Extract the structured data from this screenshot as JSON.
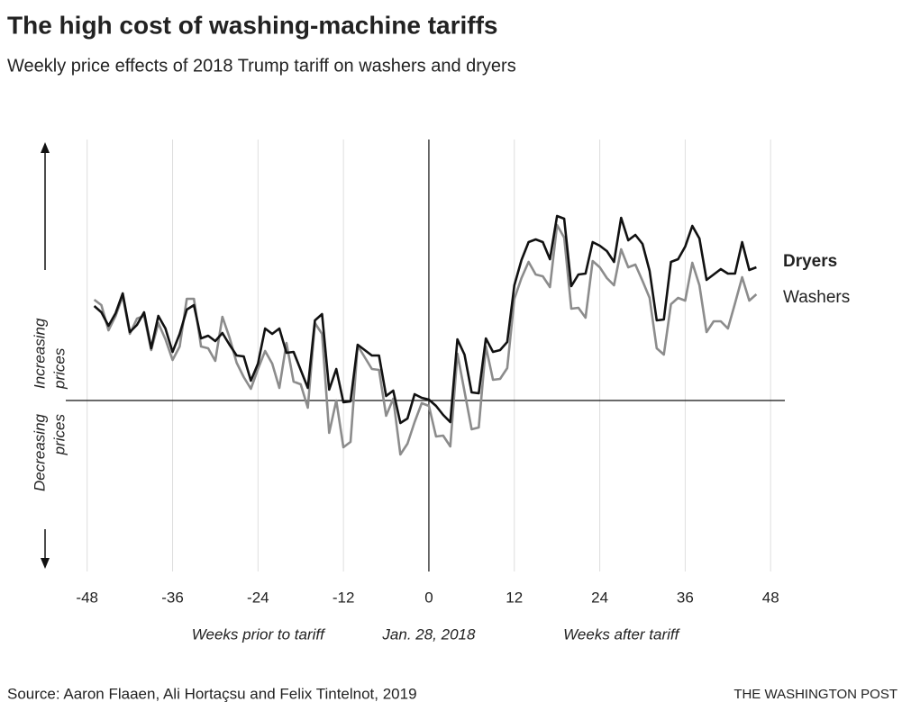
{
  "chart_data": {
    "type": "line",
    "title": "The high cost of washing-machine tariffs",
    "subtitle": "Weekly price effects of 2018 Trump tariff on washers and dryers",
    "x": [
      -47,
      -46,
      -45,
      -44,
      -43,
      -42,
      -41,
      -40,
      -39,
      -38,
      -37,
      -36,
      -35,
      -34,
      -33,
      -32,
      -31,
      -30,
      -29,
      -28,
      -27,
      -26,
      -25,
      -24,
      -23,
      -22,
      -21,
      -20,
      -19,
      -18,
      -17,
      -16,
      -15,
      -14,
      -13,
      -12,
      -11,
      -10,
      -9,
      -8,
      -7,
      -6,
      -5,
      -4,
      -3,
      -2,
      -1,
      0,
      1,
      2,
      3,
      4,
      5,
      6,
      7,
      8,
      9,
      10,
      11,
      12,
      13,
      14,
      15,
      16,
      17,
      18,
      19,
      20,
      21,
      22,
      23,
      24,
      25,
      26,
      27,
      28,
      29,
      30,
      31,
      32,
      33,
      34,
      35,
      36,
      37,
      38,
      39,
      40,
      41,
      42,
      43,
      44,
      45,
      46
    ],
    "series": [
      {
        "name": "Washers",
        "color": "#8c8c8c",
        "values": [
          11.2,
          10.6,
          7.8,
          9.4,
          11.6,
          7.4,
          9.1,
          9.4,
          5.6,
          8.6,
          6.8,
          4.5,
          6.0,
          11.3,
          11.3,
          6.0,
          5.8,
          4.4,
          9.3,
          7.0,
          4.2,
          2.6,
          1.3,
          3.5,
          5.5,
          4.1,
          1.4,
          6.4,
          2.1,
          1.8,
          -0.8,
          8.6,
          7.4,
          -3.6,
          0,
          -5.2,
          -4.6,
          6.1,
          4.8,
          3.5,
          3.4,
          -1.7,
          0.2,
          -6.0,
          -4.8,
          -2.4,
          -0.3,
          -0.6,
          -4.0,
          -3.9,
          -5.1,
          5.2,
          1.0,
          -3.2,
          -3.0,
          6.0,
          2.3,
          2.4,
          3.6,
          11.3,
          13.6,
          15.4,
          14.0,
          13.8,
          12.6,
          19.5,
          18.1,
          10.2,
          10.3,
          9.2,
          15.5,
          14.8,
          13.6,
          12.8,
          16.8,
          14.8,
          15.1,
          13.3,
          11.4,
          5.8,
          5.1,
          10.7,
          11.4,
          11.1,
          15.3,
          12.8,
          7.6,
          8.8,
          8.8,
          8.0,
          10.8,
          13.7,
          11.1,
          11.8
        ]
      },
      {
        "name": "Dryers",
        "color": "#111111",
        "values": [
          10.5,
          9.8,
          8.3,
          9.7,
          11.9,
          7.6,
          8.4,
          9.8,
          5.8,
          9.4,
          8.0,
          5.4,
          7.4,
          10.1,
          10.6,
          6.9,
          7.2,
          6.6,
          7.5,
          6.2,
          5.0,
          4.9,
          2.2,
          4.1,
          8.0,
          7.4,
          8.0,
          5.3,
          5.4,
          3.4,
          1.4,
          8.9,
          9.6,
          1.2,
          3.5,
          -0.2,
          -0.1,
          6.2,
          5.6,
          5.0,
          5.0,
          0.5,
          1.1,
          -2.5,
          -2.0,
          0.7,
          0.3,
          0.1,
          -0.6,
          -1.6,
          -2.4,
          6.8,
          5.1,
          0.9,
          0.8,
          6.9,
          5.4,
          5.6,
          6.5,
          12.8,
          15.6,
          17.6,
          17.9,
          17.6,
          15.7,
          20.5,
          20.2,
          12.7,
          14.0,
          14.1,
          17.6,
          17.2,
          16.6,
          15.4,
          20.3,
          17.8,
          18.4,
          17.4,
          14.4,
          8.9,
          9.0,
          15.4,
          15.7,
          17.1,
          19.4,
          18.0,
          13.4,
          14.0,
          14.6,
          14.1,
          14.1,
          17.6,
          14.5,
          14.8
        ]
      }
    ],
    "xlim": [
      -51,
      50
    ],
    "ylim": [
      -19,
      29
    ],
    "xticks": [
      -48,
      -36,
      -24,
      -12,
      0,
      12,
      24,
      36,
      48
    ],
    "grid": true,
    "y_label_up": [
      "Increasing",
      "prices"
    ],
    "y_label_down": [
      "Decreasing",
      "prices"
    ],
    "x_annotations": [
      "Weeks prior to tariff",
      "Jan. 28, 2018",
      "Weeks after tariff"
    ],
    "source": "Source: Aaron Flaaen, Ali Hortaçsu and Felix Tintelnot, 2019",
    "credit": "THE WASHINGTON POST"
  }
}
